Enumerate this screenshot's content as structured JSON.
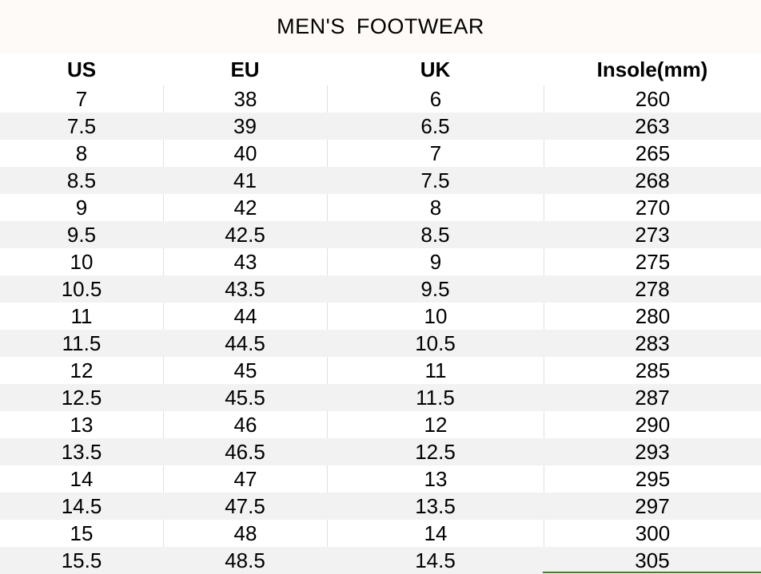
{
  "title": "MEN'S  FOOTWEAR",
  "columns": [
    "US",
    "EU",
    "UK",
    "Insole(mm)"
  ],
  "rows": [
    [
      "7",
      "38",
      "6",
      "260"
    ],
    [
      "7.5",
      "39",
      "6.5",
      "263"
    ],
    [
      "8",
      "40",
      "7",
      "265"
    ],
    [
      "8.5",
      "41",
      "7.5",
      "268"
    ],
    [
      "9",
      "42",
      "8",
      "270"
    ],
    [
      "9.5",
      "42.5",
      "8.5",
      "273"
    ],
    [
      "10",
      "43",
      "9",
      "275"
    ],
    [
      "10.5",
      "43.5",
      "9.5",
      "278"
    ],
    [
      "11",
      "44",
      "10",
      "280"
    ],
    [
      "11.5",
      "44.5",
      "10.5",
      "283"
    ],
    [
      "12",
      "45",
      "11",
      "285"
    ],
    [
      "12.5",
      "45.5",
      "11.5",
      "287"
    ],
    [
      "13",
      "46",
      "12",
      "290"
    ],
    [
      "13.5",
      "46.5",
      "12.5",
      "293"
    ],
    [
      "14",
      "47",
      "13",
      "295"
    ],
    [
      "14.5",
      "47.5",
      "13.5",
      "297"
    ],
    [
      "15",
      "48",
      "14",
      "300"
    ],
    [
      "15.5",
      "48.5",
      "14.5",
      "305"
    ]
  ],
  "colors": {
    "title_bg": "#fefaf7",
    "alt_row": "#f2f2f2",
    "accent_line": "#4a7d2e"
  }
}
